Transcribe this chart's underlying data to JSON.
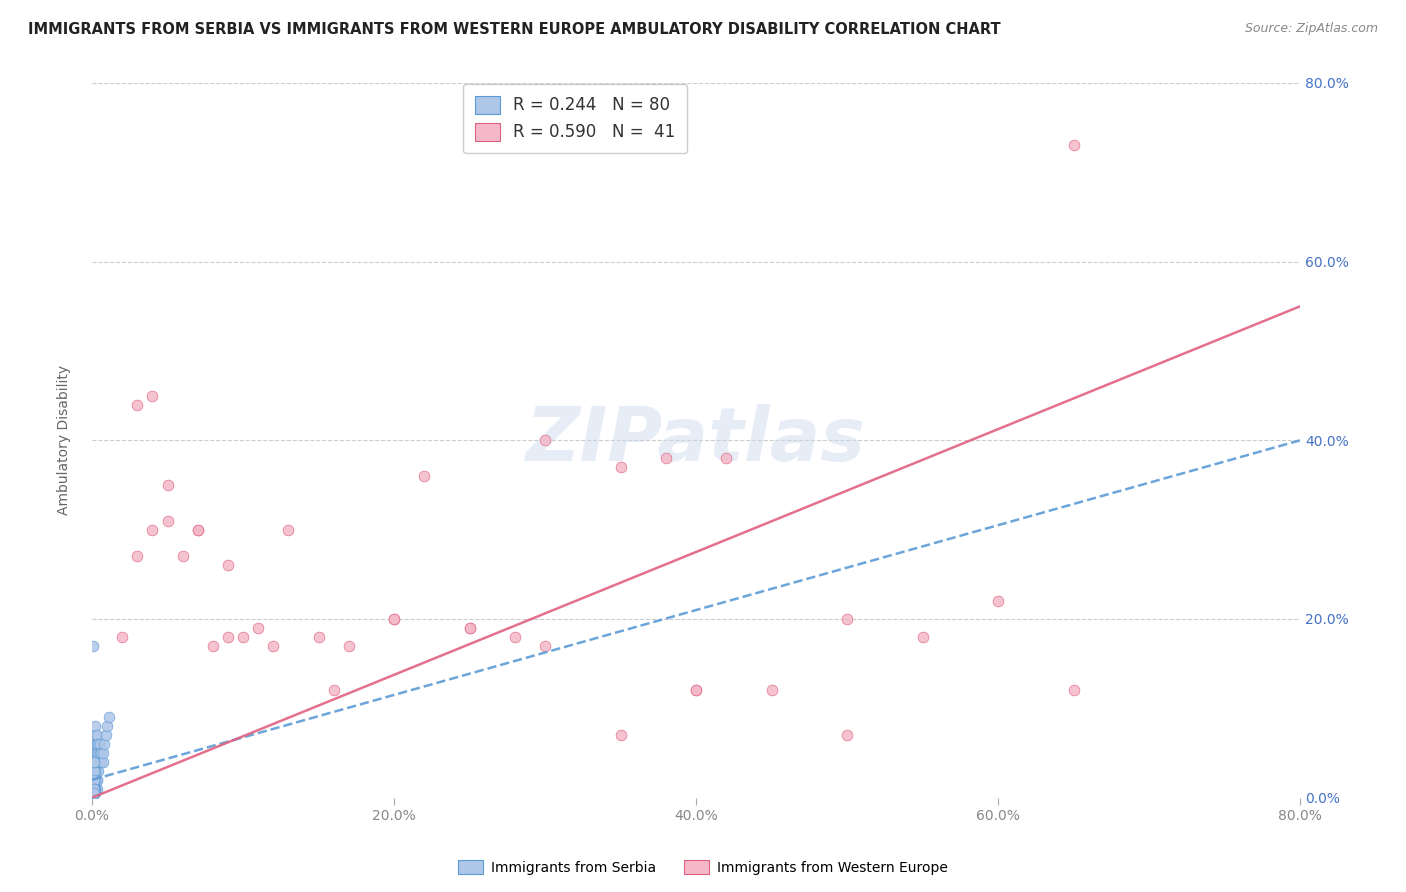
{
  "title": "IMMIGRANTS FROM SERBIA VS IMMIGRANTS FROM WESTERN EUROPE AMBULATORY DISABILITY CORRELATION CHART",
  "source": "Source: ZipAtlas.com",
  "ylabel": "Ambulatory Disability",
  "watermark": "ZIPatlas",
  "series1": {
    "name": "Immigrants from Serbia",
    "R": 0.244,
    "N": 80,
    "color": "#aec6e8",
    "edge_color": "#5b9bd5",
    "line_color": "#5b9bd5",
    "line_style": "--"
  },
  "series2": {
    "name": "Immigrants from Western Europe",
    "R": 0.59,
    "N": 41,
    "color": "#f4b8c8",
    "edge_color": "#e06080",
    "line_color": "#e06080",
    "line_style": "-"
  },
  "xlim": [
    0.0,
    0.8
  ],
  "ylim": [
    0.0,
    0.8
  ],
  "xticks": [
    0.0,
    0.2,
    0.4,
    0.6,
    0.8
  ],
  "yticks": [
    0.0,
    0.2,
    0.4,
    0.6,
    0.8
  ],
  "serbia_x": [
    0.0005,
    0.001,
    0.001,
    0.001,
    0.001,
    0.001,
    0.001,
    0.001,
    0.001,
    0.001,
    0.002,
    0.002,
    0.002,
    0.002,
    0.002,
    0.002,
    0.002,
    0.002,
    0.002,
    0.003,
    0.003,
    0.003,
    0.003,
    0.003,
    0.003,
    0.004,
    0.004,
    0.004,
    0.004,
    0.005,
    0.005,
    0.005,
    0.006,
    0.006,
    0.007,
    0.007,
    0.008,
    0.009,
    0.01,
    0.011,
    0.001,
    0.001,
    0.001,
    0.002,
    0.002,
    0.003,
    0.001,
    0.002,
    0.001,
    0.001,
    0.001,
    0.002,
    0.003,
    0.001,
    0.001,
    0.002,
    0.001,
    0.001,
    0.002,
    0.001,
    0.001,
    0.001,
    0.001,
    0.001,
    0.002,
    0.002,
    0.001,
    0.001,
    0.001,
    0.001,
    0.001,
    0.001,
    0.001,
    0.001,
    0.001,
    0.001,
    0.001,
    0.001,
    0.001,
    0.001
  ],
  "serbia_y": [
    0.17,
    0.01,
    0.02,
    0.02,
    0.03,
    0.03,
    0.04,
    0.04,
    0.05,
    0.06,
    0.01,
    0.02,
    0.02,
    0.03,
    0.04,
    0.05,
    0.06,
    0.07,
    0.08,
    0.02,
    0.03,
    0.04,
    0.05,
    0.06,
    0.07,
    0.03,
    0.04,
    0.05,
    0.06,
    0.04,
    0.05,
    0.06,
    0.04,
    0.05,
    0.04,
    0.05,
    0.06,
    0.07,
    0.08,
    0.09,
    0.01,
    0.01,
    0.01,
    0.01,
    0.01,
    0.01,
    0.005,
    0.005,
    0.005,
    0.005,
    0.02,
    0.02,
    0.02,
    0.02,
    0.02,
    0.02,
    0.03,
    0.03,
    0.03,
    0.03,
    0.04,
    0.04,
    0.01,
    0.01,
    0.01,
    0.01,
    0.01,
    0.01,
    0.01,
    0.005,
    0.005,
    0.005,
    0.005,
    0.005,
    0.005,
    0.01,
    0.01,
    0.02,
    0.01,
    0.005
  ],
  "western_x": [
    0.02,
    0.03,
    0.04,
    0.05,
    0.06,
    0.07,
    0.08,
    0.09,
    0.1,
    0.11,
    0.13,
    0.15,
    0.17,
    0.2,
    0.22,
    0.25,
    0.28,
    0.3,
    0.35,
    0.38,
    0.4,
    0.42,
    0.45,
    0.5,
    0.55,
    0.6,
    0.65,
    0.03,
    0.04,
    0.05,
    0.07,
    0.09,
    0.12,
    0.16,
    0.2,
    0.25,
    0.3,
    0.35,
    0.4,
    0.5,
    0.65
  ],
  "western_y": [
    0.18,
    0.44,
    0.45,
    0.35,
    0.27,
    0.3,
    0.17,
    0.18,
    0.18,
    0.19,
    0.3,
    0.18,
    0.17,
    0.2,
    0.36,
    0.19,
    0.18,
    0.4,
    0.37,
    0.38,
    0.12,
    0.38,
    0.12,
    0.2,
    0.18,
    0.22,
    0.12,
    0.27,
    0.3,
    0.31,
    0.3,
    0.26,
    0.17,
    0.12,
    0.2,
    0.19,
    0.17,
    0.07,
    0.12,
    0.07,
    0.73
  ]
}
